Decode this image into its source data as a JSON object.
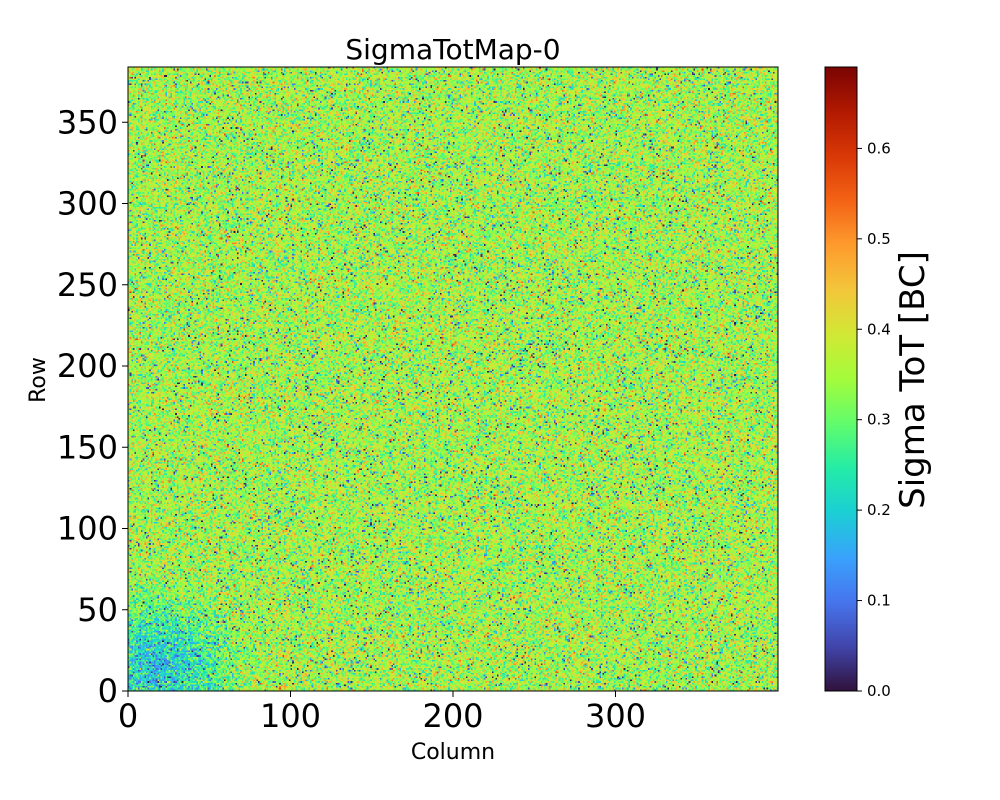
{
  "chart_data": {
    "type": "heatmap",
    "title": "SigmaTotMap-0",
    "xlabel": "Column",
    "ylabel": "Row",
    "xlim": [
      0,
      400
    ],
    "ylim": [
      0,
      384
    ],
    "x_ticks": [
      0,
      100,
      200,
      300
    ],
    "y_ticks": [
      0,
      50,
      100,
      150,
      200,
      250,
      300,
      350
    ],
    "colorbar": {
      "label": "Sigma ToT [BC]",
      "range": [
        0.0,
        0.69
      ],
      "ticks": [
        "0.0",
        "0.1",
        "0.2",
        "0.3",
        "0.4",
        "0.5",
        "0.6"
      ],
      "colormap": "turbo"
    },
    "data_summary": {
      "typical_value_range": [
        0.25,
        0.45
      ],
      "mean_approx": 0.35,
      "notes": "Pixel-level noise map; lower values clustered near the lower-left corner (columns 0-60, rows 0-60)."
    }
  },
  "colors": {
    "turbo_stops": [
      "#30123b",
      "#4145ab",
      "#4675ed",
      "#39a2fc",
      "#1bcfd4",
      "#24eca6",
      "#61fc6c",
      "#a4fc3b",
      "#d1e834",
      "#f3c63a",
      "#fe9b2d",
      "#f36315",
      "#d93806",
      "#b11901",
      "#7a0402"
    ]
  }
}
